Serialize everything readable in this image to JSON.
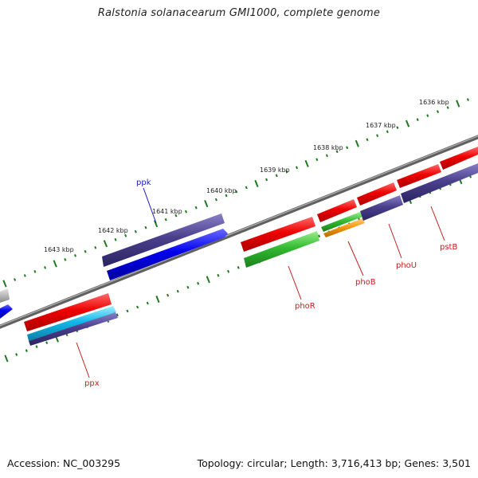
{
  "title": "Ralstonia solanacearum GMI1000, complete genome",
  "footer": {
    "accession": "Accession: NC_003295",
    "summary": "Topology: circular; Length: 3,716,413 bp; Genes: 3,501"
  },
  "colors": {
    "backbone": "#7a7a7a",
    "ticks": "#1e7a1e",
    "label_blue": "#1a1ac8",
    "label_red": "#c81e1e"
  },
  "kbp_labels": [
    "1636 kbp",
    "1637 kbp",
    "1638 kbp",
    "1639 kbp",
    "1640 kbp",
    "1641 kbp",
    "1642 kbp",
    "1643 kbp"
  ],
  "genes": [
    {
      "name": "ppk",
      "label_color": "#1a1ac8"
    },
    {
      "name": "ppx",
      "label_color": "#c81e1e"
    },
    {
      "name": "phoR",
      "label_color": "#c81e1e"
    },
    {
      "name": "phoB",
      "label_color": "#c81e1e"
    },
    {
      "name": "phoU",
      "label_color": "#c81e1e"
    },
    {
      "name": "pstB",
      "label_color": "#c81e1e"
    }
  ]
}
